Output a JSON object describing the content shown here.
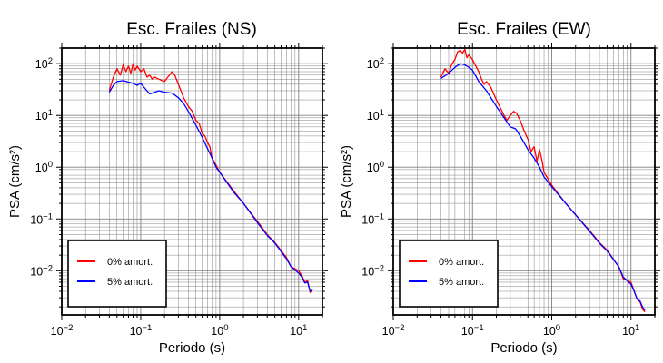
{
  "chart_data": [
    {
      "type": "line",
      "title": "Esc. Frailes (NS)",
      "xlabel": "Periodo (s)",
      "ylabel": "PSA (cm/s²)",
      "xscale": "log",
      "yscale": "log",
      "xlim": [
        0.01,
        20
      ],
      "ylim": [
        0.0014,
        200
      ],
      "grid": true,
      "legend_position": "bottom-left",
      "x_ticks": [
        {
          "value": 0.01,
          "base": "10",
          "exp": "−2"
        },
        {
          "value": 0.1,
          "base": "10",
          "exp": "−1"
        },
        {
          "value": 1,
          "base": "10",
          "exp": "0"
        },
        {
          "value": 10,
          "base": "10",
          "exp": "1"
        }
      ],
      "y_ticks": [
        {
          "value": 0.01,
          "base": "10",
          "exp": "−2"
        },
        {
          "value": 0.1,
          "base": "10",
          "exp": "−1"
        },
        {
          "value": 1,
          "base": "10",
          "exp": "0"
        },
        {
          "value": 10,
          "base": "10",
          "exp": "1"
        },
        {
          "value": 100,
          "base": "10",
          "exp": "2"
        }
      ],
      "series": [
        {
          "name": "0% amort.",
          "color": "#ff0000",
          "points": [
            [
              0.04,
              30
            ],
            [
              0.045,
              55
            ],
            [
              0.05,
              80
            ],
            [
              0.055,
              60
            ],
            [
              0.06,
              95
            ],
            [
              0.065,
              70
            ],
            [
              0.07,
              90
            ],
            [
              0.075,
              65
            ],
            [
              0.08,
              100
            ],
            [
              0.085,
              75
            ],
            [
              0.09,
              90
            ],
            [
              0.1,
              70
            ],
            [
              0.11,
              80
            ],
            [
              0.12,
              55
            ],
            [
              0.13,
              60
            ],
            [
              0.14,
              50
            ],
            [
              0.15,
              55
            ],
            [
              0.17,
              50
            ],
            [
              0.2,
              45
            ],
            [
              0.22,
              55
            ],
            [
              0.25,
              70
            ],
            [
              0.27,
              60
            ],
            [
              0.3,
              40
            ],
            [
              0.35,
              22
            ],
            [
              0.4,
              15
            ],
            [
              0.45,
              12
            ],
            [
              0.5,
              8
            ],
            [
              0.55,
              7
            ],
            [
              0.6,
              4.5
            ],
            [
              0.65,
              4
            ],
            [
              0.7,
              3
            ],
            [
              0.75,
              2.5
            ],
            [
              0.8,
              1.5
            ],
            [
              0.9,
              1.1
            ],
            [
              1,
              0.8
            ],
            [
              1.5,
              0.35
            ],
            [
              2,
              0.2
            ],
            [
              3,
              0.09
            ],
            [
              4,
              0.05
            ],
            [
              5,
              0.035
            ],
            [
              7,
              0.018
            ],
            [
              8,
              0.012
            ],
            [
              10,
              0.01
            ],
            [
              11,
              0.008
            ],
            [
              12,
              0.006
            ],
            [
              13,
              0.0065
            ],
            [
              14,
              0.0038
            ],
            [
              15,
              0.0045
            ]
          ]
        },
        {
          "name": "5% amort.",
          "color": "#0000ff",
          "points": [
            [
              0.04,
              28
            ],
            [
              0.045,
              38
            ],
            [
              0.05,
              45
            ],
            [
              0.06,
              47
            ],
            [
              0.07,
              44
            ],
            [
              0.08,
              42
            ],
            [
              0.09,
              38
            ],
            [
              0.1,
              42
            ],
            [
              0.11,
              35
            ],
            [
              0.12,
              30
            ],
            [
              0.13,
              26
            ],
            [
              0.15,
              28
            ],
            [
              0.17,
              30
            ],
            [
              0.2,
              28
            ],
            [
              0.25,
              27
            ],
            [
              0.3,
              22
            ],
            [
              0.35,
              17
            ],
            [
              0.4,
              12
            ],
            [
              0.5,
              6.5
            ],
            [
              0.6,
              3.8
            ],
            [
              0.7,
              2.3
            ],
            [
              0.8,
              1.5
            ],
            [
              0.9,
              1.0
            ],
            [
              1,
              0.8
            ],
            [
              1.5,
              0.33
            ],
            [
              2,
              0.2
            ],
            [
              3,
              0.085
            ],
            [
              4,
              0.048
            ],
            [
              5,
              0.034
            ],
            [
              7,
              0.017
            ],
            [
              8,
              0.012
            ],
            [
              10,
              0.009
            ],
            [
              11,
              0.0075
            ],
            [
              12,
              0.0058
            ],
            [
              13,
              0.006
            ],
            [
              14,
              0.004
            ],
            [
              15,
              0.0043
            ]
          ]
        }
      ]
    },
    {
      "type": "line",
      "title": "Esc. Frailes (EW)",
      "xlabel": "Periodo (s)",
      "ylabel": "PSA (cm/s²)",
      "xscale": "log",
      "yscale": "log",
      "xlim": [
        0.01,
        20
      ],
      "ylim": [
        0.0014,
        200
      ],
      "grid": true,
      "legend_position": "bottom-left",
      "x_ticks": [
        {
          "value": 0.01,
          "base": "10",
          "exp": "−2"
        },
        {
          "value": 0.1,
          "base": "10",
          "exp": "−1"
        },
        {
          "value": 1,
          "base": "10",
          "exp": "0"
        },
        {
          "value": 10,
          "base": "10",
          "exp": "1"
        }
      ],
      "y_ticks": [
        {
          "value": 0.01,
          "base": "10",
          "exp": "−2"
        },
        {
          "value": 0.1,
          "base": "10",
          "exp": "−1"
        },
        {
          "value": 1,
          "base": "10",
          "exp": "0"
        },
        {
          "value": 10,
          "base": "10",
          "exp": "1"
        },
        {
          "value": 100,
          "base": "10",
          "exp": "2"
        }
      ],
      "series": [
        {
          "name": "0% amort.",
          "color": "#ff0000",
          "points": [
            [
              0.04,
              55
            ],
            [
              0.045,
              80
            ],
            [
              0.05,
              65
            ],
            [
              0.055,
              100
            ],
            [
              0.06,
              120
            ],
            [
              0.065,
              170
            ],
            [
              0.07,
              180
            ],
            [
              0.075,
              160
            ],
            [
              0.08,
              190
            ],
            [
              0.085,
              130
            ],
            [
              0.09,
              150
            ],
            [
              0.1,
              120
            ],
            [
              0.11,
              90
            ],
            [
              0.12,
              70
            ],
            [
              0.13,
              50
            ],
            [
              0.14,
              40
            ],
            [
              0.15,
              45
            ],
            [
              0.17,
              35
            ],
            [
              0.2,
              20
            ],
            [
              0.22,
              15
            ],
            [
              0.25,
              10
            ],
            [
              0.27,
              8
            ],
            [
              0.3,
              10
            ],
            [
              0.33,
              12
            ],
            [
              0.36,
              11
            ],
            [
              0.4,
              8
            ],
            [
              0.45,
              5
            ],
            [
              0.5,
              3.5
            ],
            [
              0.55,
              2
            ],
            [
              0.6,
              2.5
            ],
            [
              0.65,
              1.3
            ],
            [
              0.7,
              2.2
            ],
            [
              0.75,
              1.4
            ],
            [
              0.8,
              0.8
            ],
            [
              1,
              0.45
            ],
            [
              1.5,
              0.2
            ],
            [
              2,
              0.12
            ],
            [
              3,
              0.06
            ],
            [
              4,
              0.035
            ],
            [
              5,
              0.025
            ],
            [
              7,
              0.012
            ],
            [
              8,
              0.007
            ],
            [
              10,
              0.006
            ],
            [
              11,
              0.004
            ],
            [
              12,
              0.0028
            ],
            [
              13,
              0.0025
            ],
            [
              14,
              0.0018
            ],
            [
              15,
              0.0016
            ]
          ]
        },
        {
          "name": "5% amort.",
          "color": "#0000ff",
          "points": [
            [
              0.04,
              52
            ],
            [
              0.05,
              65
            ],
            [
              0.06,
              85
            ],
            [
              0.07,
              100
            ],
            [
              0.08,
              95
            ],
            [
              0.09,
              85
            ],
            [
              0.1,
              75
            ],
            [
              0.12,
              45
            ],
            [
              0.15,
              30
            ],
            [
              0.2,
              15
            ],
            [
              0.25,
              9
            ],
            [
              0.3,
              6
            ],
            [
              0.35,
              5.5
            ],
            [
              0.4,
              4
            ],
            [
              0.5,
              2.2
            ],
            [
              0.6,
              1.5
            ],
            [
              0.7,
              1.0
            ],
            [
              0.8,
              0.65
            ],
            [
              1,
              0.42
            ],
            [
              1.5,
              0.2
            ],
            [
              2,
              0.12
            ],
            [
              3,
              0.058
            ],
            [
              4,
              0.034
            ],
            [
              5,
              0.024
            ],
            [
              7,
              0.012
            ],
            [
              8,
              0.0075
            ],
            [
              10,
              0.0055
            ],
            [
              11,
              0.004
            ],
            [
              12,
              0.0028
            ],
            [
              13,
              0.0026
            ],
            [
              14,
              0.002
            ],
            [
              15,
              0.0017
            ]
          ]
        }
      ]
    }
  ]
}
